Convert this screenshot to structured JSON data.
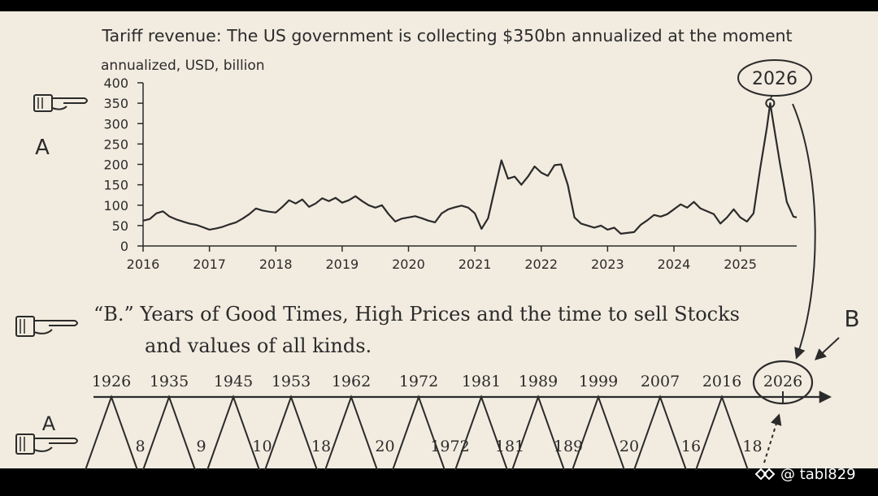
{
  "colors": {
    "paper": "#f2ece0",
    "ink": "#2b2b2b",
    "frame": "#000000",
    "watermark": "#ffffff"
  },
  "chart_data": {
    "type": "line",
    "title": "Tariff revenue: The US government is collecting $350bn annualized at the moment",
    "ylabel": "annualized, USD, billion",
    "xlabel": "",
    "ylim": [
      0,
      400
    ],
    "xlim": [
      2016,
      2025.85
    ],
    "yticks": [
      0,
      50,
      100,
      150,
      200,
      250,
      300,
      350,
      400
    ],
    "xticks": [
      2016,
      2017,
      2018,
      2019,
      2020,
      2021,
      2022,
      2023,
      2024,
      2025
    ],
    "grid": false,
    "series": [
      {
        "name": "Tariff revenue",
        "points": [
          [
            2016.0,
            62
          ],
          [
            2016.1,
            66
          ],
          [
            2016.2,
            80
          ],
          [
            2016.3,
            85
          ],
          [
            2016.4,
            72
          ],
          [
            2016.5,
            65
          ],
          [
            2016.6,
            60
          ],
          [
            2016.7,
            55
          ],
          [
            2016.8,
            52
          ],
          [
            2016.9,
            46
          ],
          [
            2017.0,
            40
          ],
          [
            2017.1,
            43
          ],
          [
            2017.2,
            47
          ],
          [
            2017.3,
            53
          ],
          [
            2017.4,
            58
          ],
          [
            2017.5,
            67
          ],
          [
            2017.6,
            78
          ],
          [
            2017.7,
            92
          ],
          [
            2017.8,
            87
          ],
          [
            2017.9,
            84
          ],
          [
            2018.0,
            82
          ],
          [
            2018.1,
            96
          ],
          [
            2018.2,
            112
          ],
          [
            2018.3,
            104
          ],
          [
            2018.4,
            114
          ],
          [
            2018.5,
            96
          ],
          [
            2018.6,
            104
          ],
          [
            2018.7,
            117
          ],
          [
            2018.8,
            110
          ],
          [
            2018.9,
            118
          ],
          [
            2019.0,
            106
          ],
          [
            2019.1,
            112
          ],
          [
            2019.2,
            122
          ],
          [
            2019.3,
            110
          ],
          [
            2019.4,
            100
          ],
          [
            2019.5,
            94
          ],
          [
            2019.6,
            100
          ],
          [
            2019.7,
            78
          ],
          [
            2019.8,
            60
          ],
          [
            2019.9,
            67
          ],
          [
            2020.0,
            70
          ],
          [
            2020.1,
            73
          ],
          [
            2020.2,
            68
          ],
          [
            2020.3,
            62
          ],
          [
            2020.4,
            58
          ],
          [
            2020.5,
            80
          ],
          [
            2020.6,
            90
          ],
          [
            2020.7,
            95
          ],
          [
            2020.8,
            99
          ],
          [
            2020.9,
            94
          ],
          [
            2021.0,
            80
          ],
          [
            2021.1,
            42
          ],
          [
            2021.2,
            68
          ],
          [
            2021.3,
            140
          ],
          [
            2021.4,
            210
          ],
          [
            2021.5,
            165
          ],
          [
            2021.6,
            170
          ],
          [
            2021.7,
            150
          ],
          [
            2021.8,
            170
          ],
          [
            2021.9,
            195
          ],
          [
            2022.0,
            180
          ],
          [
            2022.1,
            172
          ],
          [
            2022.2,
            198
          ],
          [
            2022.3,
            200
          ],
          [
            2022.4,
            150
          ],
          [
            2022.5,
            70
          ],
          [
            2022.6,
            55
          ],
          [
            2022.7,
            50
          ],
          [
            2022.8,
            45
          ],
          [
            2022.9,
            50
          ],
          [
            2023.0,
            40
          ],
          [
            2023.1,
            45
          ],
          [
            2023.2,
            30
          ],
          [
            2023.3,
            32
          ],
          [
            2023.4,
            34
          ],
          [
            2023.5,
            52
          ],
          [
            2023.6,
            63
          ],
          [
            2023.7,
            76
          ],
          [
            2023.8,
            72
          ],
          [
            2023.9,
            78
          ],
          [
            2024.0,
            90
          ],
          [
            2024.1,
            102
          ],
          [
            2024.2,
            94
          ],
          [
            2024.3,
            108
          ],
          [
            2024.4,
            92
          ],
          [
            2024.5,
            85
          ],
          [
            2024.6,
            78
          ],
          [
            2024.7,
            55
          ],
          [
            2024.8,
            70
          ],
          [
            2024.9,
            90
          ],
          [
            2025.0,
            70
          ],
          [
            2025.1,
            60
          ],
          [
            2025.2,
            80
          ],
          [
            2025.3,
            190
          ],
          [
            2025.4,
            290
          ],
          [
            2025.45,
            350
          ],
          [
            2025.5,
            300
          ],
          [
            2025.6,
            200
          ],
          [
            2025.7,
            108
          ],
          [
            2025.8,
            72
          ],
          [
            2025.85,
            70
          ]
        ]
      }
    ],
    "annotations": [
      {
        "label": "2026",
        "at_x": 2025.45,
        "at_y": 350
      }
    ]
  },
  "annotations": {
    "left_label_a_top": "A",
    "right_label_b": "B",
    "b_heading_line1": "“B.” Years of Good Times, High Prices and the time to sell Stocks",
    "b_heading_line2": "and values of all kinds.",
    "left_label_a_bottom": "A"
  },
  "timeline": {
    "years": [
      "1926",
      "1935",
      "1945",
      "1953",
      "1962",
      "1972",
      "1981",
      "1989",
      "1999",
      "2007",
      "2016",
      "2026"
    ],
    "gaps": [
      "8",
      "9",
      "10",
      "18",
      "20",
      "1972",
      "181",
      "189",
      "20",
      "16",
      "18"
    ],
    "circled_year": "2026"
  },
  "watermark": "@ tabl829"
}
